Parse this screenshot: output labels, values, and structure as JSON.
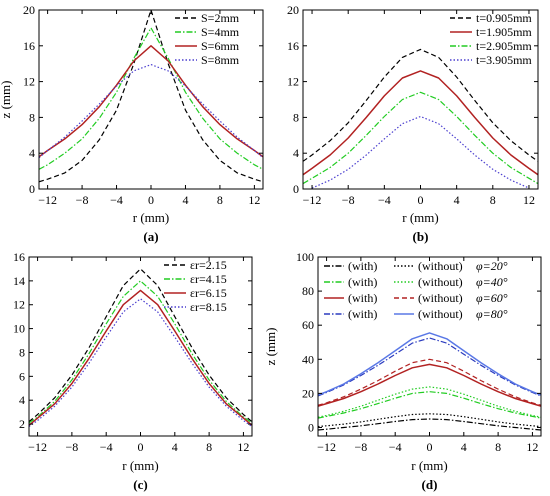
{
  "chart_data": [
    {
      "type": "line",
      "panel_label": "(a)",
      "xlabel": "r (mm)",
      "ylabel": "z (mm)",
      "xlim": [
        -13,
        13
      ],
      "ylim": [
        0,
        20
      ],
      "xticks": [
        -12,
        -8,
        -4,
        0,
        4,
        8,
        12
      ],
      "yticks": [
        0,
        4,
        8,
        12,
        16,
        20
      ],
      "grid": false,
      "legend_position": "top-right",
      "series": [
        {
          "name": "S=2mm",
          "color": "#000000",
          "dash": "dashed",
          "x": [
            -13,
            -12,
            -10,
            -8,
            -6,
            -4,
            -2,
            0,
            2,
            4,
            6,
            8,
            10,
            12,
            13
          ],
          "y": [
            0.8,
            1.1,
            1.8,
            3.2,
            5.5,
            8.8,
            14.0,
            20.0,
            14.0,
            8.8,
            5.5,
            3.2,
            1.8,
            1.1,
            0.8
          ]
        },
        {
          "name": "S=4mm",
          "color": "#22cc22",
          "dash": "dashdot",
          "x": [
            -13,
            -12,
            -10,
            -8,
            -6,
            -4,
            -2,
            0,
            2,
            4,
            6,
            8,
            10,
            12,
            13
          ],
          "y": [
            2.2,
            2.7,
            4.0,
            5.6,
            7.9,
            10.8,
            14.6,
            18.0,
            14.6,
            10.8,
            7.9,
            5.6,
            4.0,
            2.7,
            2.2
          ]
        },
        {
          "name": "S=6mm",
          "color": "#b22222",
          "dash": "solid",
          "x": [
            -13,
            -12,
            -10,
            -8,
            -6,
            -4,
            -2,
            0,
            2,
            4,
            6,
            8,
            10,
            12,
            13
          ],
          "y": [
            3.6,
            4.3,
            5.6,
            7.2,
            9.2,
            11.6,
            14.3,
            16.0,
            14.3,
            11.6,
            9.2,
            7.2,
            5.6,
            4.3,
            3.6
          ]
        },
        {
          "name": "S=8mm",
          "color": "#4b3fcf",
          "dash": "dotted",
          "x": [
            -13,
            -12,
            -10,
            -8,
            -6,
            -4,
            -2,
            0,
            2,
            4,
            6,
            8,
            10,
            12,
            13
          ],
          "y": [
            3.5,
            4.3,
            5.8,
            7.6,
            9.5,
            11.5,
            13.2,
            13.9,
            13.2,
            11.5,
            9.5,
            7.6,
            5.8,
            4.3,
            3.5
          ]
        }
      ]
    },
    {
      "type": "line",
      "panel_label": "(b)",
      "xlabel": "r (mm)",
      "ylabel": "",
      "xlim": [
        -13,
        13
      ],
      "ylim": [
        0,
        20
      ],
      "xticks": [
        -12,
        -8,
        -4,
        0,
        4,
        8,
        12
      ],
      "yticks": [
        0,
        4,
        8,
        12,
        16,
        20
      ],
      "grid": false,
      "legend_position": "top-right",
      "series": [
        {
          "name": "t=0.905mm",
          "color": "#000000",
          "dash": "dashed",
          "x": [
            -13,
            -12,
            -10,
            -8,
            -6,
            -4,
            -2,
            0,
            2,
            4,
            6,
            8,
            10,
            12,
            13
          ],
          "y": [
            3.1,
            3.8,
            5.4,
            7.4,
            9.9,
            12.5,
            14.7,
            15.6,
            14.7,
            12.5,
            9.9,
            7.4,
            5.4,
            3.8,
            3.1
          ]
        },
        {
          "name": "t=1.905mm",
          "color": "#b22222",
          "dash": "solid",
          "x": [
            -13,
            -12,
            -10,
            -8,
            -6,
            -4,
            -2,
            0,
            2,
            4,
            6,
            8,
            10,
            12,
            13
          ],
          "y": [
            1.6,
            2.3,
            3.8,
            5.7,
            8.0,
            10.4,
            12.4,
            13.2,
            12.4,
            10.4,
            8.0,
            5.7,
            3.8,
            2.3,
            1.6
          ]
        },
        {
          "name": "t=2.905mm",
          "color": "#22cc22",
          "dash": "dashdot",
          "x": [
            -13,
            -12,
            -10,
            -8,
            -6,
            -4,
            -2,
            0,
            2,
            4,
            6,
            8,
            10,
            12,
            13
          ],
          "y": [
            0.6,
            1.2,
            2.4,
            4.0,
            6.0,
            8.1,
            10.0,
            10.8,
            10.0,
            8.1,
            6.0,
            4.0,
            2.4,
            1.2,
            0.6
          ]
        },
        {
          "name": "t=3.905mm",
          "color": "#4b3fcf",
          "dash": "dotted",
          "x": [
            -12,
            -10,
            -8,
            -6,
            -4,
            -2,
            0,
            2,
            4,
            6,
            8,
            10,
            12
          ],
          "y": [
            0.1,
            1.0,
            2.2,
            3.8,
            5.6,
            7.3,
            8.1,
            7.3,
            5.6,
            3.8,
            2.2,
            1.0,
            0.1
          ]
        }
      ]
    },
    {
      "type": "line",
      "panel_label": "(c)",
      "xlabel": "r (mm)",
      "ylabel": "",
      "xlim": [
        -13,
        13
      ],
      "ylim": [
        1,
        16
      ],
      "xticks": [
        -12,
        -8,
        -4,
        0,
        4,
        8,
        12
      ],
      "yticks": [
        2,
        4,
        6,
        8,
        10,
        12,
        14,
        16
      ],
      "grid": false,
      "legend_position": "top-right",
      "series": [
        {
          "name": "εr=2.15",
          "color": "#000000",
          "dash": "dashed",
          "x": [
            -13,
            -12,
            -10,
            -8,
            -6,
            -4,
            -2,
            0,
            2,
            4,
            6,
            8,
            10,
            12,
            13
          ],
          "y": [
            2.2,
            2.8,
            4.2,
            6.1,
            8.4,
            11.0,
            13.6,
            15.0,
            13.6,
            11.0,
            8.4,
            6.1,
            4.2,
            2.8,
            2.2
          ]
        },
        {
          "name": "εr=4.15",
          "color": "#22cc22",
          "dash": "dashdot",
          "x": [
            -13,
            -12,
            -10,
            -8,
            -6,
            -4,
            -2,
            0,
            2,
            4,
            6,
            8,
            10,
            12,
            13
          ],
          "y": [
            2.1,
            2.6,
            3.9,
            5.7,
            7.9,
            10.4,
            12.7,
            14.0,
            12.7,
            10.4,
            7.9,
            5.7,
            3.9,
            2.6,
            2.1
          ]
        },
        {
          "name": "εr=6.15",
          "color": "#b22222",
          "dash": "solid",
          "x": [
            -13,
            -12,
            -10,
            -8,
            -6,
            -4,
            -2,
            0,
            2,
            4,
            6,
            8,
            10,
            12,
            13
          ],
          "y": [
            1.9,
            2.5,
            3.7,
            5.4,
            7.5,
            9.8,
            12.0,
            13.2,
            12.0,
            9.8,
            7.5,
            5.4,
            3.7,
            2.5,
            1.9
          ]
        },
        {
          "name": "εr=8.15",
          "color": "#4b3fcf",
          "dash": "dotted",
          "x": [
            -13,
            -12,
            -10,
            -8,
            -6,
            -4,
            -2,
            0,
            2,
            4,
            6,
            8,
            10,
            12,
            13
          ],
          "y": [
            1.8,
            2.3,
            3.5,
            5.1,
            7.1,
            9.3,
            11.4,
            12.5,
            11.4,
            9.3,
            7.1,
            5.1,
            3.5,
            2.3,
            1.8
          ]
        }
      ]
    },
    {
      "type": "line",
      "panel_label": "(d)",
      "xlabel": "r (mm)",
      "ylabel": "z (mm)",
      "xlim": [
        -13,
        13
      ],
      "ylim": [
        -5,
        100
      ],
      "xticks": [
        -12,
        -8,
        -4,
        0,
        4,
        8,
        12
      ],
      "yticks": [
        0,
        20,
        40,
        60,
        80,
        100
      ],
      "grid": false,
      "legend_position": "top",
      "legend_rows": [
        {
          "with": "(with)",
          "without": "(without)",
          "angle": "φ=20°"
        },
        {
          "with": "(with)",
          "without": "(without)",
          "angle": "φ=40°"
        },
        {
          "with": "(with)",
          "without": "(without)",
          "angle": "φ=60°"
        },
        {
          "with": "(with)",
          "without": "(without)",
          "angle": "φ=80°"
        }
      ],
      "series": [
        {
          "name": "(with) φ=20°",
          "color": "#000000",
          "dash": "dashdot",
          "x": [
            -13,
            -12,
            -10,
            -8,
            -6,
            -4,
            -2,
            0,
            2,
            4,
            6,
            8,
            10,
            12,
            13
          ],
          "y": [
            -1.5,
            -1.0,
            0.0,
            1.0,
            2.2,
            3.5,
            4.6,
            5.0,
            4.6,
            3.5,
            2.2,
            1.0,
            0.0,
            -1.0,
            -1.5
          ]
        },
        {
          "name": "(without) φ=20°",
          "color": "#000000",
          "dash": "dotted",
          "x": [
            -13,
            -12,
            -10,
            -8,
            -6,
            -4,
            -2,
            0,
            2,
            4,
            6,
            8,
            10,
            12,
            13
          ],
          "y": [
            0.5,
            1.0,
            2.0,
            3.3,
            4.8,
            6.3,
            7.6,
            8.0,
            7.6,
            6.3,
            4.8,
            3.3,
            2.0,
            1.0,
            0.5
          ]
        },
        {
          "name": "(with) φ=40°",
          "color": "#22cc22",
          "dash": "dashdot",
          "x": [
            -13,
            -12,
            -10,
            -8,
            -6,
            -4,
            -2,
            0,
            2,
            4,
            6,
            8,
            10,
            12,
            13
          ],
          "y": [
            5.5,
            6.5,
            8.5,
            11.0,
            14.0,
            17.2,
            20.0,
            21.0,
            20.0,
            17.2,
            14.0,
            11.0,
            8.5,
            6.5,
            5.5
          ]
        },
        {
          "name": "(without) φ=40°",
          "color": "#22cc22",
          "dash": "dotted",
          "x": [
            -13,
            -12,
            -10,
            -8,
            -6,
            -4,
            -2,
            0,
            2,
            4,
            6,
            8,
            10,
            12,
            13
          ],
          "y": [
            6.0,
            7.0,
            9.5,
            12.5,
            16.0,
            19.5,
            22.5,
            23.8,
            22.5,
            19.5,
            16.0,
            12.5,
            9.5,
            7.0,
            6.0
          ]
        },
        {
          "name": "(with) φ=60°",
          "color": "#b22222",
          "dash": "solid",
          "x": [
            -13,
            -12,
            -10,
            -8,
            -6,
            -4,
            -2,
            0,
            2,
            4,
            6,
            8,
            10,
            12,
            13
          ],
          "y": [
            12.5,
            14.0,
            17.0,
            21.0,
            25.5,
            30.5,
            35.0,
            37.0,
            35.0,
            30.5,
            25.5,
            21.0,
            17.0,
            14.0,
            12.5
          ]
        },
        {
          "name": "(without) φ=60°",
          "color": "#b22222",
          "dash": "dashed",
          "x": [
            -13,
            -12,
            -10,
            -8,
            -6,
            -4,
            -2,
            0,
            2,
            4,
            6,
            8,
            10,
            12,
            13
          ],
          "y": [
            13.0,
            14.5,
            18.0,
            22.5,
            27.5,
            33.0,
            38.0,
            40.0,
            38.0,
            33.0,
            27.5,
            22.5,
            18.0,
            14.5,
            13.0
          ]
        },
        {
          "name": "(with) φ=80°",
          "color": "#2b3bbf",
          "dash": "dashdot",
          "x": [
            -13,
            -12,
            -10,
            -8,
            -6,
            -4,
            -2,
            0,
            2,
            4,
            6,
            8,
            10,
            12,
            13
          ],
          "y": [
            18.5,
            20.5,
            25.0,
            30.5,
            36.5,
            43.0,
            49.5,
            52.5,
            49.5,
            43.0,
            36.5,
            30.5,
            25.0,
            20.5,
            18.5
          ]
        },
        {
          "name": "(without) φ=80°",
          "color": "#5a78e6",
          "dash": "solid",
          "x": [
            -13,
            -12,
            -10,
            -8,
            -6,
            -4,
            -2,
            0,
            2,
            4,
            6,
            8,
            10,
            12,
            13
          ],
          "y": [
            19.0,
            21.0,
            25.5,
            31.5,
            38.0,
            45.0,
            52.0,
            55.5,
            52.0,
            45.0,
            38.0,
            31.5,
            25.5,
            21.0,
            19.0
          ]
        }
      ]
    }
  ]
}
